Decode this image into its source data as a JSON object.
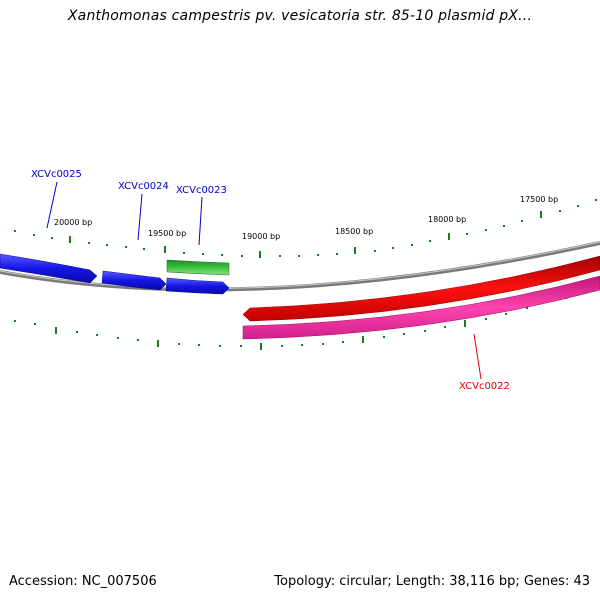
{
  "title": "Xanthomonas campestris pv. vesicatoria str. 85-10 plasmid pX...",
  "footer": {
    "accession": "Accession: NC_007506",
    "summary": "Topology: circular; Length: 38,116 bp; Genes: 43"
  },
  "colors": {
    "backbone": "#888888",
    "tick": "#1a7a1a",
    "blue_gene": "#1515e6",
    "green_gene": "#3cc23c",
    "red_gene": "#e60000",
    "pink_gene": "#ee2a9a",
    "blue_label": "#0000cc",
    "red_label": "#e00000"
  },
  "ticks": [
    {
      "label": "20000 bp"
    },
    {
      "label": "19500 bp"
    },
    {
      "label": "19000 bp"
    },
    {
      "label": "18500 bp"
    },
    {
      "label": "18000 bp"
    },
    {
      "label": "17500 bp"
    }
  ],
  "genes": [
    {
      "label": "XCVc0025",
      "color": "blue_gene",
      "label_color": "blue_label"
    },
    {
      "label": "XCVc0024",
      "color": "blue_gene",
      "label_color": "blue_label"
    },
    {
      "label": "XCVc0023",
      "color": "blue_gene",
      "label_color": "blue_label"
    },
    {
      "label": "XCVc0022",
      "color": "pink_gene",
      "label_color": "red_label"
    }
  ]
}
